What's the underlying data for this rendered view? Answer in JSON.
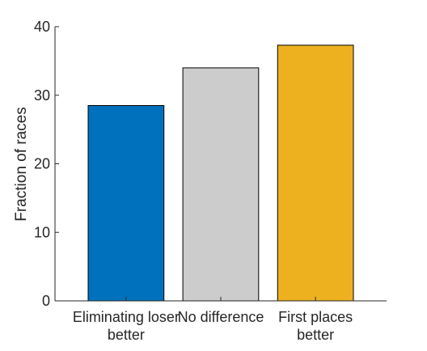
{
  "chart_data": {
    "type": "bar",
    "categories": [
      [
        "Eliminating loser",
        "better"
      ],
      [
        "No difference"
      ],
      [
        "First places",
        "better"
      ]
    ],
    "values": [
      28.5,
      34.0,
      37.3
    ],
    "colors": [
      "#0072BD",
      "#CCCCCC",
      "#EDB120"
    ],
    "title": "",
    "xlabel": "",
    "ylabel": "Fraction of races",
    "ylim": [
      0,
      40
    ],
    "yticks": [
      0,
      10,
      20,
      30,
      40
    ],
    "grid": false,
    "legend": "none"
  }
}
